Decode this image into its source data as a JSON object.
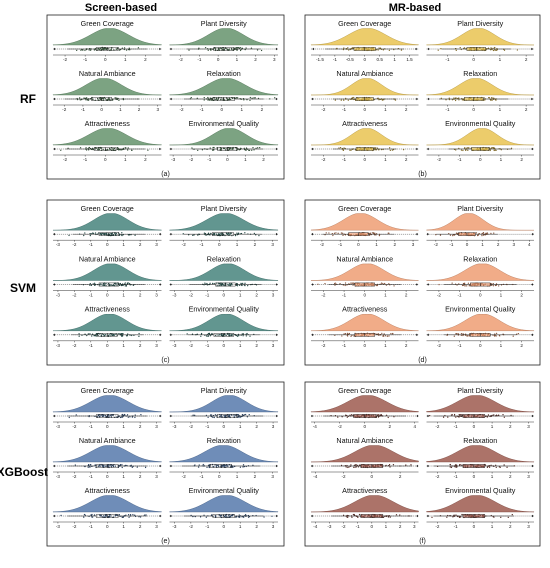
{
  "columns": [
    "Screen-based",
    "MR-based"
  ],
  "rows": [
    "RF",
    "SVM",
    "XGBoost"
  ],
  "panels": [
    "(a)",
    "(b)",
    "(c)",
    "(d)",
    "(e)",
    "(f)"
  ],
  "metrics": [
    "Green Coverage",
    "Plant Diversity",
    "Natural Ambiance",
    "Relaxation",
    "Attractiveness",
    "Environmental Quality"
  ],
  "colors": {
    "RF": {
      "screen": "#5f8f66",
      "mr": "#e8c14b"
    },
    "SVM": {
      "screen": "#3f7f78",
      "mr": "#ee9a6e"
    },
    "XGBoost": {
      "screen": "#4f74a8",
      "mr": "#9a5448"
    }
  },
  "chart_data": {
    "type": "raincloud",
    "description_of_marks": "each subplot shows a half-violin density, a jittered strip of points and a horizontal box plot",
    "panels": [
      {
        "id": "(a)",
        "model": "RF",
        "source": "Screen-based",
        "subplots": [
          {
            "title": "Green Coverage",
            "ticks": [
              -2,
              -1,
              0,
              1,
              2
            ],
            "xlim": [
              -2.6,
              2.8
            ],
            "peak": 0.1,
            "spread": 0.9
          },
          {
            "title": "Plant Diversity",
            "ticks": [
              -2,
              -1,
              0,
              1,
              2,
              3
            ],
            "xlim": [
              -2.6,
              3.2
            ],
            "peak": 0.3,
            "spread": 0.9
          },
          {
            "title": "Natural Ambiance",
            "ticks": [
              -2,
              -1,
              0,
              1,
              2,
              3
            ],
            "xlim": [
              -2.6,
              3.2
            ],
            "peak": 0.0,
            "spread": 0.9
          },
          {
            "title": "Relaxation",
            "ticks": [
              -2,
              -1,
              0,
              1,
              2
            ],
            "xlim": [
              -2.6,
              2.8
            ],
            "peak": 0.1,
            "spread": 0.9
          },
          {
            "title": "Attractiveness",
            "ticks": [
              -2,
              -1,
              0,
              1,
              2
            ],
            "xlim": [
              -2.6,
              2.8
            ],
            "peak": 0.0,
            "spread": 0.9
          },
          {
            "title": "Environmental Quality",
            "ticks": [
              -3,
              -2,
              -1,
              0,
              1,
              2
            ],
            "xlim": [
              -3.2,
              2.8
            ],
            "peak": 0.0,
            "spread": 0.9
          }
        ]
      },
      {
        "id": "(b)",
        "model": "RF",
        "source": "MR-based",
        "subplots": [
          {
            "title": "Green Coverage",
            "ticks": [
              -1.5,
              -1,
              -0.5,
              0,
              0.5,
              1,
              1.5
            ],
            "xlim": [
              -1.8,
              1.8
            ],
            "peak": 0.0,
            "spread": 0.6
          },
          {
            "title": "Plant Diversity",
            "ticks": [
              -1,
              0,
              1,
              2
            ],
            "xlim": [
              -1.8,
              2.3
            ],
            "peak": 0.1,
            "spread": 0.6
          },
          {
            "title": "Natural Ambiance",
            "ticks": [
              -2,
              -1,
              0,
              1,
              2
            ],
            "xlim": [
              -2.6,
              2.6
            ],
            "peak": 0.0,
            "spread": 0.7
          },
          {
            "title": "Relaxation",
            "ticks": [
              -1,
              0,
              1,
              2
            ],
            "xlim": [
              -1.8,
              2.3
            ],
            "peak": 0.0,
            "spread": 0.6
          },
          {
            "title": "Attractiveness",
            "ticks": [
              -2,
              -1,
              0,
              1,
              2
            ],
            "xlim": [
              -2.6,
              2.6
            ],
            "peak": 0.0,
            "spread": 0.7
          },
          {
            "title": "Environmental Quality",
            "ticks": [
              -2,
              -1,
              0,
              1,
              2
            ],
            "xlim": [
              -2.6,
              2.6
            ],
            "peak": 0.0,
            "spread": 0.7
          }
        ]
      },
      {
        "id": "(c)",
        "model": "SVM",
        "source": "Screen-based",
        "subplots": [
          {
            "title": "Green Coverage",
            "ticks": [
              -3,
              -2,
              -1,
              0,
              1,
              2,
              3
            ],
            "xlim": [
              -3.3,
              3.3
            ],
            "peak": 0.1,
            "spread": 1.0
          },
          {
            "title": "Plant Diversity",
            "ticks": [
              -2,
              -1,
              0,
              1,
              2,
              3
            ],
            "xlim": [
              -2.8,
              3.3
            ],
            "peak": 0.2,
            "spread": 1.0
          },
          {
            "title": "Natural Ambiance",
            "ticks": [
              -3,
              -2,
              -1,
              0,
              1,
              2,
              3
            ],
            "xlim": [
              -3.3,
              3.3
            ],
            "peak": 0.1,
            "spread": 1.0
          },
          {
            "title": "Relaxation",
            "ticks": [
              -3,
              -2,
              -1,
              0,
              1,
              2,
              3
            ],
            "xlim": [
              -3.3,
              3.3
            ],
            "peak": 0.1,
            "spread": 1.0
          },
          {
            "title": "Attractiveness",
            "ticks": [
              -3,
              -2,
              -1,
              0,
              1,
              2,
              3
            ],
            "xlim": [
              -3.3,
              3.3
            ],
            "peak": 0.0,
            "spread": 1.0
          },
          {
            "title": "Environmental Quality",
            "ticks": [
              -3,
              -2,
              -1,
              0,
              1,
              2,
              3
            ],
            "xlim": [
              -3.3,
              3.3
            ],
            "peak": 0.0,
            "spread": 1.0
          }
        ]
      },
      {
        "id": "(d)",
        "model": "SVM",
        "source": "MR-based",
        "subplots": [
          {
            "title": "Green Coverage",
            "ticks": [
              -2,
              -1,
              0,
              1,
              2,
              3
            ],
            "xlim": [
              -2.6,
              3.3
            ],
            "peak": 0.0,
            "spread": 0.9
          },
          {
            "title": "Plant Diversity",
            "ticks": [
              -2,
              -1,
              0,
              1,
              2,
              3,
              4
            ],
            "xlim": [
              -2.6,
              4.3
            ],
            "peak": 0.0,
            "spread": 0.9
          },
          {
            "title": "Natural Ambiance",
            "ticks": [
              -2,
              -1,
              0,
              1,
              2
            ],
            "xlim": [
              -2.6,
              2.6
            ],
            "peak": 0.0,
            "spread": 0.8
          },
          {
            "title": "Relaxation",
            "ticks": [
              -2,
              -1,
              0,
              1,
              2
            ],
            "xlim": [
              -2.6,
              2.6
            ],
            "peak": 0.0,
            "spread": 0.8
          },
          {
            "title": "Attractiveness",
            "ticks": [
              -2,
              -1,
              0,
              1,
              2
            ],
            "xlim": [
              -2.6,
              2.6
            ],
            "peak": 0.0,
            "spread": 0.8
          },
          {
            "title": "Environmental Quality",
            "ticks": [
              -2,
              -1,
              0,
              1,
              2
            ],
            "xlim": [
              -2.6,
              2.6
            ],
            "peak": 0.0,
            "spread": 0.8
          }
        ]
      },
      {
        "id": "(e)",
        "model": "XGBoost",
        "source": "Screen-based",
        "subplots": [
          {
            "title": "Green Coverage",
            "ticks": [
              -3,
              -2,
              -1,
              0,
              1,
              2,
              3
            ],
            "xlim": [
              -3.3,
              3.3
            ],
            "peak": 0.0,
            "spread": 1.1
          },
          {
            "title": "Plant Diversity",
            "ticks": [
              -3,
              -2,
              -1,
              0,
              1,
              2,
              3
            ],
            "xlim": [
              -3.3,
              3.3
            ],
            "peak": 0.2,
            "spread": 1.0
          },
          {
            "title": "Natural Ambiance",
            "ticks": [
              -3,
              -2,
              -1,
              0,
              1,
              2,
              3
            ],
            "xlim": [
              -3.3,
              3.3
            ],
            "peak": 0.0,
            "spread": 1.1
          },
          {
            "title": "Relaxation",
            "ticks": [
              -2,
              -1,
              0,
              1,
              2,
              3
            ],
            "xlim": [
              -2.8,
              3.3
            ],
            "peak": 0.1,
            "spread": 1.0
          },
          {
            "title": "Attractiveness",
            "ticks": [
              -3,
              -2,
              -1,
              0,
              1,
              2,
              3
            ],
            "xlim": [
              -3.3,
              3.3
            ],
            "peak": 0.0,
            "spread": 1.1
          },
          {
            "title": "Environmental Quality",
            "ticks": [
              -3,
              -2,
              -1,
              0,
              1,
              2,
              3
            ],
            "xlim": [
              -3.3,
              3.3
            ],
            "peak": 0.0,
            "spread": 1.1
          }
        ]
      },
      {
        "id": "(f)",
        "model": "XGBoost",
        "source": "MR-based",
        "subplots": [
          {
            "title": "Green Coverage",
            "ticks": [
              -4,
              -2,
              0,
              2,
              4
            ],
            "xlim": [
              -4.3,
              4.3
            ],
            "peak": 0.0,
            "spread": 1.5
          },
          {
            "title": "Plant Diversity",
            "ticks": [
              -2,
              -1,
              0,
              1,
              2,
              3
            ],
            "xlim": [
              -2.6,
              3.3
            ],
            "peak": 0.0,
            "spread": 1.0
          },
          {
            "title": "Natural Ambiance",
            "ticks": [
              -4,
              -2,
              0,
              2
            ],
            "xlim": [
              -4.3,
              3.3
            ],
            "peak": 0.0,
            "spread": 1.3
          },
          {
            "title": "Relaxation",
            "ticks": [
              -2,
              -1,
              0,
              1,
              2,
              3
            ],
            "xlim": [
              -2.6,
              3.3
            ],
            "peak": 0.0,
            "spread": 1.0
          },
          {
            "title": "Attractiveness",
            "ticks": [
              -4,
              -3,
              -2,
              -1,
              0,
              1,
              2,
              3
            ],
            "xlim": [
              -4.3,
              3.3
            ],
            "peak": 0.0,
            "spread": 1.3
          },
          {
            "title": "Environmental Quality",
            "ticks": [
              -2,
              -1,
              0,
              1,
              2,
              3
            ],
            "xlim": [
              -2.6,
              3.3
            ],
            "peak": 0.0,
            "spread": 1.0
          }
        ]
      }
    ]
  }
}
